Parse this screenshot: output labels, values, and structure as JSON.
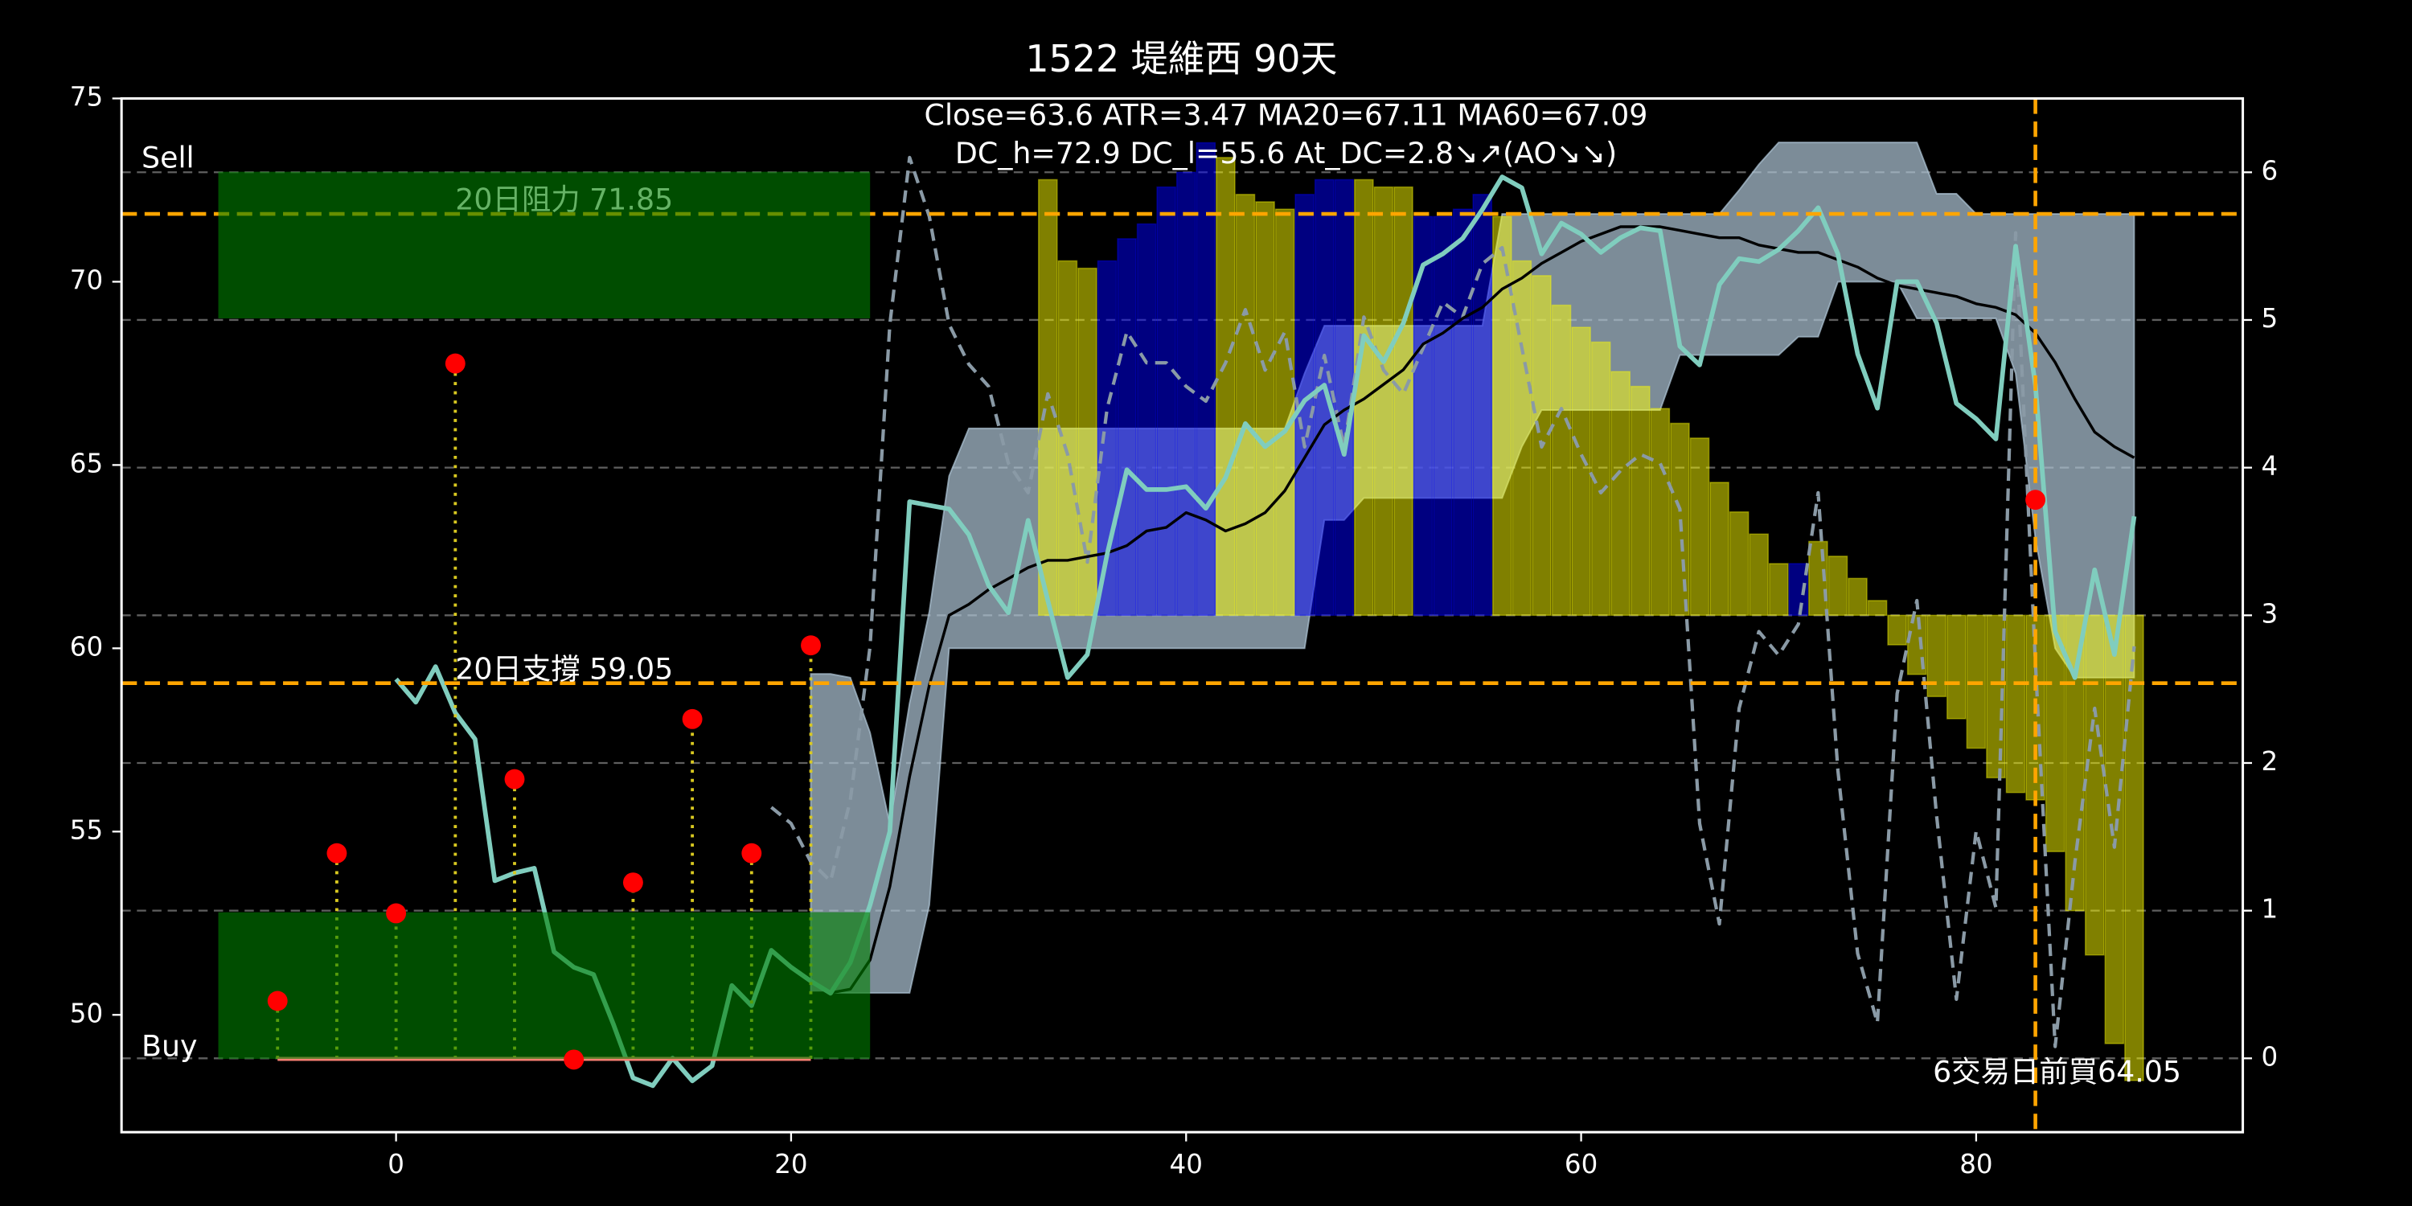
{
  "chart_data": {
    "type": "line",
    "title": "1522 堤維西 90天",
    "annotations": [
      "Close=63.6 ATR=3.47 MA20=67.11 MA60=67.09",
      "DC_h=72.9 DC_l=55.6 At_DC=2.8↘↗(AO↘↘)"
    ],
    "xlim": [
      -13.9,
      93.5
    ],
    "xticks": [
      0,
      20,
      40,
      60,
      80
    ],
    "ylim": [
      46.8,
      75
    ],
    "yticks": [
      50,
      55,
      60,
      65,
      70,
      75
    ],
    "y2lim": [
      -0.5,
      6.5
    ],
    "y2ticks": [
      0,
      1,
      2,
      3,
      4,
      5,
      6
    ],
    "grid": true,
    "x": [
      0,
      1,
      2,
      3,
      4,
      5,
      6,
      7,
      8,
      9,
      10,
      11,
      12,
      13,
      14,
      15,
      16,
      17,
      18,
      19,
      20,
      21,
      22,
      23,
      24,
      25,
      26,
      27,
      28,
      29,
      30,
      31,
      32,
      33,
      34,
      35,
      36,
      37,
      38,
      39,
      40,
      41,
      42,
      43,
      44,
      45,
      46,
      47,
      48,
      49,
      50,
      51,
      52,
      53,
      54,
      55,
      56,
      57,
      58,
      59,
      60,
      61,
      62,
      63,
      64,
      65,
      66,
      67,
      68,
      69,
      70,
      71,
      72,
      73,
      74,
      75,
      76,
      77,
      78,
      79,
      80,
      81,
      82,
      83,
      84,
      85,
      86,
      87,
      88
    ],
    "series": [
      {
        "type": "band",
        "axis": "y",
        "color": "#b0c8d8",
        "opacity": 0.7,
        "upper": [
          null,
          null,
          null,
          null,
          null,
          null,
          null,
          null,
          null,
          null,
          null,
          null,
          null,
          null,
          null,
          null,
          null,
          null,
          null,
          null,
          null,
          59.3,
          59.3,
          59.2,
          57.7,
          55.2,
          58.5,
          61.0,
          64.7,
          66.0,
          66.0,
          66.0,
          66.0,
          66.0,
          66.0,
          66.0,
          66.0,
          66.0,
          66.0,
          66.0,
          66.0,
          66.0,
          66.0,
          66.0,
          66.0,
          66.0,
          67.5,
          68.8,
          68.8,
          68.8,
          68.8,
          68.8,
          68.8,
          68.8,
          68.8,
          68.8,
          71.85,
          71.85,
          71.85,
          71.85,
          71.85,
          71.85,
          71.85,
          71.85,
          71.85,
          71.85,
          71.85,
          71.85,
          72.5,
          73.2,
          73.8,
          73.8,
          73.8,
          73.8,
          73.8,
          73.8,
          73.8,
          73.8,
          72.4,
          72.4,
          71.85,
          71.85,
          71.85,
          71.85,
          71.85,
          71.85,
          71.85,
          71.85,
          71.85
        ],
        "lower": [
          null,
          null,
          null,
          null,
          null,
          null,
          null,
          null,
          null,
          null,
          null,
          null,
          null,
          null,
          null,
          null,
          null,
          null,
          null,
          null,
          null,
          50.6,
          50.6,
          50.6,
          50.6,
          50.6,
          50.6,
          53.0,
          60.0,
          60.0,
          60.0,
          60.0,
          60.0,
          60.0,
          60.0,
          60.0,
          60.0,
          60.0,
          60.0,
          60.0,
          60.0,
          60.0,
          60.0,
          60.0,
          60.0,
          60.0,
          60.0,
          63.5,
          63.5,
          64.1,
          64.1,
          64.1,
          64.1,
          64.1,
          64.1,
          64.1,
          64.1,
          65.5,
          66.5,
          66.5,
          66.5,
          66.5,
          66.5,
          66.5,
          66.5,
          68.0,
          68.0,
          68.0,
          68.0,
          68.0,
          68.0,
          68.5,
          68.5,
          70.0,
          70.0,
          70.0,
          70.0,
          69.0,
          69.0,
          69.0,
          69.0,
          69.0,
          67.5,
          63.0,
          60.0,
          59.2,
          59.2,
          59.2,
          59.2
        ]
      },
      {
        "type": "bar",
        "axis": "y2",
        "bottom": 3,
        "opacity": 0.5,
        "values": [
          null,
          null,
          null,
          null,
          null,
          null,
          null,
          null,
          null,
          null,
          null,
          null,
          null,
          null,
          null,
          null,
          null,
          null,
          null,
          null,
          null,
          null,
          null,
          null,
          null,
          null,
          null,
          null,
          null,
          null,
          null,
          null,
          null,
          5.95,
          5.4,
          5.35,
          5.4,
          5.55,
          5.65,
          5.9,
          6.0,
          6.2,
          6.1,
          5.85,
          5.8,
          5.75,
          5.85,
          5.95,
          5.95,
          5.95,
          5.9,
          5.9,
          5.7,
          5.7,
          5.75,
          5.85,
          5.7,
          5.4,
          5.3,
          5.1,
          4.95,
          4.85,
          4.65,
          4.55,
          4.4,
          4.3,
          4.2,
          3.9,
          3.7,
          3.55,
          3.35,
          3.35,
          3.5,
          3.4,
          3.25,
          3.1,
          2.8,
          2.6,
          2.45,
          2.3,
          2.1,
          1.9,
          1.8,
          1.75,
          1.4,
          1.0,
          0.7,
          0.1,
          -0.15
        ],
        "colors": [
          null,
          null,
          null,
          null,
          null,
          null,
          null,
          null,
          null,
          null,
          null,
          null,
          null,
          null,
          null,
          null,
          null,
          null,
          null,
          null,
          null,
          null,
          null,
          null,
          null,
          null,
          null,
          null,
          null,
          null,
          null,
          null,
          null,
          "yellow",
          "yellow",
          "yellow",
          "blue",
          "blue",
          "blue",
          "blue",
          "blue",
          "blue",
          "yellow",
          "yellow",
          "yellow",
          "yellow",
          "blue",
          "blue",
          "blue",
          "yellow",
          "yellow",
          "yellow",
          "blue",
          "blue",
          "blue",
          "blue",
          "yellow",
          "yellow",
          "yellow",
          "yellow",
          "yellow",
          "yellow",
          "yellow",
          "yellow",
          "yellow",
          "yellow",
          "yellow",
          "yellow",
          "yellow",
          "yellow",
          "yellow",
          "blue",
          "yellow",
          "yellow",
          "yellow",
          "yellow",
          "yellow",
          "yellow",
          "yellow",
          "yellow",
          "yellow",
          "yellow",
          "yellow",
          "yellow",
          "yellow",
          "yellow",
          "yellow",
          "yellow",
          "yellow"
        ]
      },
      {
        "type": "line",
        "axis": "y2",
        "color": "#8a9aa6",
        "dashed": true,
        "values": [
          null,
          null,
          null,
          null,
          null,
          null,
          null,
          null,
          null,
          null,
          null,
          null,
          null,
          null,
          null,
          null,
          null,
          null,
          null,
          1.7,
          1.59,
          1.33,
          1.2,
          1.75,
          2.79,
          4.97,
          6.1,
          5.7,
          4.97,
          4.7,
          4.55,
          4.03,
          3.83,
          4.5,
          4.09,
          3.36,
          4.4,
          4.92,
          4.71,
          4.71,
          4.55,
          4.45,
          4.71,
          5.07,
          4.66,
          4.92,
          4.14,
          4.76,
          4.14,
          5.02,
          4.66,
          4.5,
          4.81,
          5.12,
          5.02,
          5.38,
          5.49,
          4.81,
          4.14,
          4.4,
          4.09,
          3.83,
          3.98,
          4.09,
          4.03,
          3.72,
          1.59,
          0.91,
          2.37,
          2.89,
          2.73,
          2.94,
          3.83,
          1.95,
          0.71,
          0.24,
          2.47,
          3.1,
          1.64,
          0.4,
          1.54,
          1.02,
          5.59,
          2.68,
          0.08,
          1.33,
          2.37,
          1.43,
          2.79
        ]
      },
      {
        "type": "line",
        "axis": "y",
        "color": "#000000",
        "values": [
          null,
          null,
          null,
          null,
          null,
          null,
          null,
          null,
          null,
          null,
          null,
          null,
          null,
          null,
          null,
          null,
          null,
          null,
          null,
          null,
          null,
          50.6,
          50.6,
          50.7,
          51.5,
          53.5,
          56.5,
          59.0,
          60.9,
          61.2,
          61.6,
          61.9,
          62.2,
          62.4,
          62.4,
          62.5,
          62.6,
          62.8,
          63.2,
          63.3,
          63.7,
          63.5,
          63.2,
          63.4,
          63.7,
          64.3,
          65.2,
          66.1,
          66.5,
          66.8,
          67.2,
          67.6,
          68.3,
          68.6,
          69.0,
          69.3,
          69.8,
          70.1,
          70.5,
          70.8,
          71.1,
          71.3,
          71.5,
          71.5,
          71.5,
          71.4,
          71.3,
          71.2,
          71.2,
          71.0,
          70.9,
          70.8,
          70.8,
          70.6,
          70.4,
          70.1,
          69.9,
          69.8,
          69.7,
          69.6,
          69.4,
          69.3,
          69.1,
          68.6,
          67.8,
          66.8,
          65.9,
          65.5,
          65.2
        ]
      },
      {
        "type": "line",
        "axis": "y",
        "color": "#80cdbe",
        "values": [
          59.16,
          58.53,
          59.5,
          58.24,
          57.52,
          53.66,
          53.87,
          54.0,
          51.72,
          51.3,
          51.1,
          49.75,
          48.28,
          48.07,
          48.82,
          48.2,
          48.61,
          50.8,
          50.25,
          51.76,
          51.3,
          50.92,
          50.59,
          51.43,
          53.0,
          55.0,
          64.0,
          63.9,
          63.8,
          63.1,
          61.72,
          60.97,
          63.49,
          61.3,
          59.2,
          59.83,
          62.56,
          64.87,
          64.33,
          64.33,
          64.41,
          63.82,
          64.66,
          66.13,
          65.5,
          65.92,
          66.76,
          67.18,
          65.29,
          68.53,
          67.82,
          68.87,
          70.46,
          70.76,
          71.18,
          71.97,
          72.86,
          72.56,
          70.76,
          71.6,
          71.3,
          70.8,
          71.2,
          71.47,
          71.39,
          68.24,
          67.73,
          69.92,
          70.63,
          70.55,
          70.88,
          71.39,
          72.02,
          70.76,
          68.03,
          66.55,
          70.0,
          70.0,
          68.87,
          66.68,
          66.26,
          65.71,
          70.97,
          67.18,
          60.46,
          59.2,
          62.14,
          59.83,
          63.6
        ]
      }
    ],
    "hlines": [
      {
        "value": 71.85,
        "label": "20日阻力 71.85",
        "color": "orange"
      },
      {
        "value": 59.05,
        "label": "20日支撐 59.05",
        "color": "orange"
      }
    ],
    "vline": {
      "value": 83,
      "color": "orange"
    },
    "zones": [
      {
        "label": "Sell",
        "label_position": "top",
        "xlim": [
          -9,
          24
        ],
        "ylim": [
          69,
          73
        ],
        "color": "#008000"
      },
      {
        "label": "Buy",
        "label_position": "bottom",
        "xlim": [
          -9,
          24
        ],
        "ylim": [
          48.8,
          52.8
        ],
        "color": "#008000"
      }
    ],
    "signals": {
      "x": [
        -6,
        -3,
        0,
        3,
        6,
        9,
        12,
        15,
        18,
        21
      ],
      "values": [
        50.38,
        54.41,
        52.77,
        67.77,
        56.43,
        48.78,
        53.61,
        58.07,
        54.41,
        60.08
      ],
      "base": 48.8,
      "color": "red",
      "stem_color": "#d8c820",
      "base_color": "#fa8072"
    },
    "last_buy": {
      "x": 83,
      "value": 64.05,
      "label": "6交易日前買64.05",
      "color": "red"
    }
  }
}
